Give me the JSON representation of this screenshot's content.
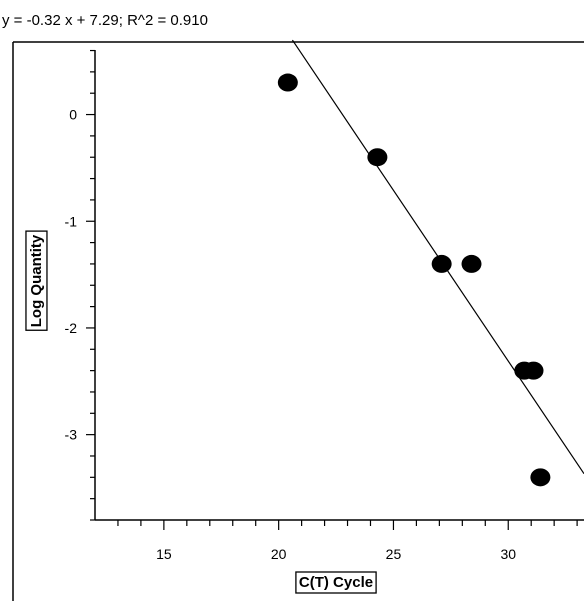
{
  "equation_text": "y = -0.32 x + 7.29;  R^2 = 0.910",
  "chart_data": {
    "type": "scatter",
    "xlabel": "C(T) Cycle",
    "ylabel": "Log Quantity",
    "xlim": [
      12,
      33.3
    ],
    "ylim": [
      -3.8,
      0.68
    ],
    "x_ticks": [
      15,
      20,
      25,
      30
    ],
    "y_ticks": [
      0,
      -1,
      -2,
      -3
    ],
    "x_tick_labels": [
      "15",
      "20",
      "25",
      "30"
    ],
    "y_tick_labels": [
      "0",
      "-1",
      "-2",
      "-3"
    ],
    "series": [
      {
        "points": [
          {
            "x": 20.4,
            "y": 0.3
          },
          {
            "x": 24.3,
            "y": -0.4
          },
          {
            "x": 27.1,
            "y": -1.4
          },
          {
            "x": 28.4,
            "y": -1.4
          },
          {
            "x": 30.7,
            "y": -2.4
          },
          {
            "x": 31.1,
            "y": -2.4
          },
          {
            "x": 31.4,
            "y": -3.4
          }
        ]
      }
    ],
    "fit_line": {
      "slope": -0.32,
      "intercept": 7.29,
      "x_from": 20.6,
      "x_to": 33.3
    },
    "grid": false,
    "point_color": "#000000",
    "line_color": "#000000"
  }
}
